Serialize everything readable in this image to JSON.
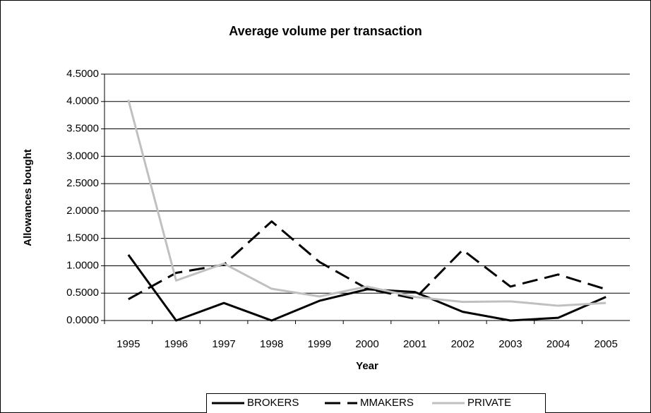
{
  "chart_data": {
    "type": "line",
    "title": "Average volume per transaction",
    "x_label": "Year",
    "y_label": "Allowances bought",
    "categories": [
      "1995",
      "1996",
      "1997",
      "1998",
      "1999",
      "2000",
      "2001",
      "2002",
      "2003",
      "2004",
      "2005"
    ],
    "series": [
      {
        "name": "BROKERS",
        "color": "#000000",
        "dash": "solid",
        "values": [
          1.2,
          0.0,
          0.32,
          0.0,
          0.36,
          0.57,
          0.52,
          0.16,
          0.0,
          0.05,
          0.43
        ]
      },
      {
        "name": "MMAKERS",
        "color": "#000000",
        "dash": "dashed",
        "values": [
          0.39,
          0.87,
          1.02,
          1.81,
          1.07,
          0.58,
          0.4,
          1.29,
          0.62,
          0.84,
          0.57
        ]
      },
      {
        "name": "PRIVATE",
        "color": "#c0c0c0",
        "dash": "solid",
        "values": [
          4.03,
          0.73,
          1.04,
          0.58,
          0.44,
          0.62,
          0.43,
          0.34,
          0.35,
          0.27,
          0.32
        ]
      }
    ],
    "ylim": [
      0,
      4.5
    ],
    "yticks": [
      {
        "value": 0,
        "label": "0.0000"
      },
      {
        "value": 0.5,
        "label": "0.5000"
      },
      {
        "value": 1,
        "label": "1.0000"
      },
      {
        "value": 1.5,
        "label": "1.5000"
      },
      {
        "value": 2,
        "label": "2.0000"
      },
      {
        "value": 2.5,
        "label": "2.5000"
      },
      {
        "value": 3,
        "label": "3.0000"
      },
      {
        "value": 3.5,
        "label": "3.5000"
      },
      {
        "value": 4,
        "label": "4.0000"
      },
      {
        "value": 4.5,
        "label": "4.5000"
      }
    ],
    "grid": true,
    "legend": "bottom"
  }
}
